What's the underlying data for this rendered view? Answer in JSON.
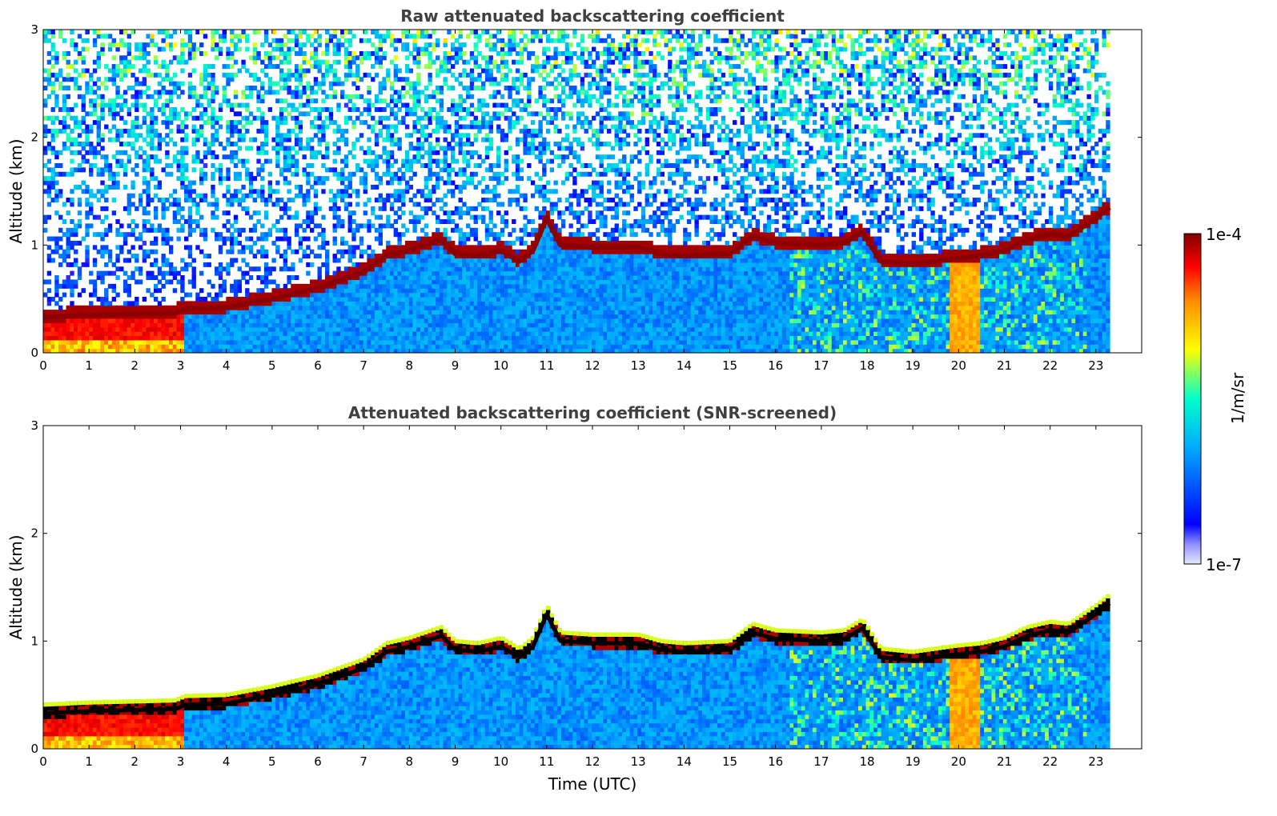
{
  "chart_data": [
    {
      "type": "heatmap",
      "title": "Raw attenuated backscattering coefficient",
      "xlabel": "",
      "ylabel": "Altitude (km)",
      "xlim": [
        0,
        24
      ],
      "ylim": [
        0,
        3
      ],
      "x_ticks": [
        0,
        1,
        2,
        3,
        4,
        5,
        6,
        7,
        8,
        9,
        10,
        11,
        12,
        13,
        14,
        15,
        16,
        17,
        18,
        19,
        20,
        21,
        22,
        23
      ],
      "y_ticks": [
        0,
        1,
        2,
        3
      ],
      "data_end_time": 23.3,
      "screened": false,
      "boundary_layer_top_km": {
        "time": [
          0,
          1,
          2,
          2.9,
          3.1,
          4,
          5,
          6,
          7,
          7.5,
          8,
          8.7,
          9,
          9.5,
          10,
          10.4,
          10.7,
          11,
          11.3,
          12,
          13,
          13.5,
          14,
          15,
          15.5,
          16,
          17,
          17.5,
          17.9,
          18.3,
          19,
          19.5,
          20,
          20.5,
          21,
          21.5,
          22,
          22.4,
          23,
          23.3
        ],
        "altitude": [
          0.33,
          0.35,
          0.36,
          0.37,
          0.41,
          0.42,
          0.5,
          0.6,
          0.75,
          0.9,
          0.95,
          1.05,
          0.92,
          0.9,
          0.95,
          0.85,
          0.95,
          1.25,
          1.0,
          0.98,
          0.98,
          0.92,
          0.9,
          0.92,
          1.08,
          1.02,
          1.0,
          1.02,
          1.12,
          0.85,
          0.82,
          0.85,
          0.88,
          0.9,
          0.95,
          1.05,
          1.1,
          1.08,
          1.25,
          1.35
        ]
      }
    },
    {
      "type": "heatmap",
      "title": "Attenuated backscattering coefficient (SNR-screened)",
      "xlabel": "Time (UTC)",
      "ylabel": "Altitude (km)",
      "xlim": [
        0,
        24
      ],
      "ylim": [
        0,
        3
      ],
      "x_ticks": [
        0,
        1,
        2,
        3,
        4,
        5,
        6,
        7,
        8,
        9,
        10,
        11,
        12,
        13,
        14,
        15,
        16,
        17,
        18,
        19,
        20,
        21,
        22,
        23
      ],
      "y_ticks": [
        0,
        1,
        2,
        3
      ],
      "data_end_time": 23.3,
      "screened": true,
      "boundary_layer_top_km": {
        "time": [
          0,
          1,
          2,
          2.9,
          3.1,
          4,
          5,
          6,
          7,
          7.5,
          8,
          8.7,
          9,
          9.5,
          10,
          10.4,
          10.7,
          11,
          11.3,
          12,
          13,
          13.5,
          14,
          15,
          15.5,
          16,
          17,
          17.5,
          17.9,
          18.3,
          19,
          19.5,
          20,
          20.5,
          21,
          21.5,
          22,
          22.4,
          23,
          23.3
        ],
        "altitude": [
          0.33,
          0.35,
          0.36,
          0.37,
          0.41,
          0.42,
          0.5,
          0.6,
          0.75,
          0.9,
          0.95,
          1.05,
          0.92,
          0.9,
          0.95,
          0.85,
          0.95,
          1.25,
          1.0,
          0.98,
          0.98,
          0.92,
          0.9,
          0.92,
          1.08,
          1.02,
          1.0,
          1.02,
          1.12,
          0.85,
          0.82,
          0.85,
          0.88,
          0.9,
          0.95,
          1.05,
          1.1,
          1.08,
          1.25,
          1.35
        ]
      }
    }
  ],
  "colorbar": {
    "label": "1/m/sr",
    "max_label": "1e-4",
    "min_label": "1e-7",
    "scale": "log",
    "range": [
      1e-07,
      0.0001
    ],
    "colormap": "jet",
    "stops": [
      "#e8e8ff",
      "#0000ff",
      "#00aaff",
      "#00ffcc",
      "#ffff00",
      "#ff8800",
      "#ff0000",
      "#800000"
    ]
  }
}
